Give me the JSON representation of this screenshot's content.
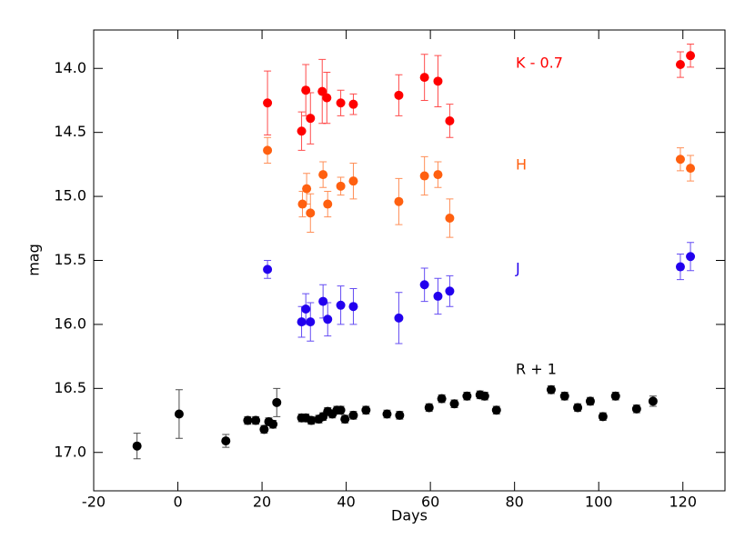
{
  "chart_data": {
    "type": "scatter",
    "xlabel": "Days",
    "ylabel": "mag",
    "xlim": [
      -20,
      130
    ],
    "ylim": [
      13.7,
      17.3
    ],
    "y_inverted": true,
    "xticks": [
      -20,
      0,
      20,
      40,
      60,
      80,
      100,
      120
    ],
    "yticks": [
      {
        "value": 14,
        "label": "14.0"
      },
      {
        "value": 14.5,
        "label": "14.5"
      },
      {
        "value": 15,
        "label": "15.0"
      },
      {
        "value": 15.5,
        "label": "15.5"
      },
      {
        "value": 16,
        "label": "16.0"
      },
      {
        "value": 16.5,
        "label": "16.5"
      },
      {
        "value": 17,
        "label": "17.0"
      }
    ],
    "series": [
      {
        "name": "K - 0.7",
        "color": "#ff0000",
        "x": [
          21.3,
          29.4,
          30.4,
          31.5,
          34.3,
          35.4,
          38.7,
          41.7,
          52.5,
          58.6,
          61.8,
          64.6,
          119.4,
          121.8
        ],
        "values": [
          14.27,
          14.49,
          14.17,
          14.39,
          14.18,
          14.23,
          14.27,
          14.28,
          14.21,
          14.07,
          14.1,
          14.41,
          13.97,
          13.9
        ],
        "errors": [
          0.25,
          0.15,
          0.2,
          0.2,
          0.25,
          0.2,
          0.1,
          0.08,
          0.16,
          0.18,
          0.2,
          0.13,
          0.1,
          0.09
        ]
      },
      {
        "name": "H",
        "color": "#ff6010",
        "x": [
          21.3,
          29.6,
          30.6,
          31.5,
          34.5,
          35.6,
          38.7,
          41.7,
          52.5,
          58.6,
          61.8,
          64.6,
          119.4,
          121.8
        ],
        "values": [
          14.64,
          15.06,
          14.94,
          15.13,
          14.83,
          15.06,
          14.92,
          14.88,
          15.04,
          14.84,
          14.83,
          15.17,
          14.71,
          14.78
        ],
        "errors": [
          0.1,
          0.1,
          0.12,
          0.15,
          0.1,
          0.1,
          0.07,
          0.14,
          0.18,
          0.15,
          0.1,
          0.15,
          0.09,
          0.1
        ]
      },
      {
        "name": "J",
        "color": "#2200ee",
        "x": [
          21.3,
          29.4,
          30.4,
          31.5,
          34.5,
          35.6,
          38.7,
          41.7,
          52.5,
          58.6,
          61.8,
          64.6,
          119.4,
          121.8
        ],
        "values": [
          15.57,
          15.98,
          15.88,
          15.98,
          15.82,
          15.96,
          15.85,
          15.86,
          15.95,
          15.69,
          15.78,
          15.74,
          15.55,
          15.47
        ],
        "errors": [
          0.07,
          0.12,
          0.12,
          0.15,
          0.13,
          0.13,
          0.15,
          0.14,
          0.2,
          0.13,
          0.14,
          0.12,
          0.1,
          0.11
        ]
      },
      {
        "name": "R + 1",
        "color": "#000000",
        "x": [
          -9.7,
          0.3,
          11.4,
          16.6,
          18.5,
          20.5,
          21.6,
          22.6,
          23.5,
          29.4,
          30.4,
          31.7,
          33.5,
          34.5,
          35.6,
          36.7,
          37.8,
          38.7,
          39.7,
          41.7,
          44.7,
          49.7,
          52.7,
          59.7,
          62.7,
          65.7,
          68.7,
          71.8,
          72.9,
          75.7,
          88.7,
          91.9,
          95.0,
          98.0,
          101.0,
          104.0,
          109.0,
          112.9
        ],
        "values": [
          16.95,
          16.7,
          16.91,
          16.75,
          16.75,
          16.82,
          16.76,
          16.78,
          16.61,
          16.73,
          16.73,
          16.75,
          16.74,
          16.72,
          16.68,
          16.7,
          16.67,
          16.67,
          16.74,
          16.71,
          16.67,
          16.7,
          16.71,
          16.65,
          16.58,
          16.62,
          16.56,
          16.55,
          16.56,
          16.67,
          16.51,
          16.56,
          16.65,
          16.6,
          16.72,
          16.56,
          16.66,
          16.6
        ],
        "errors": [
          0.1,
          0.19,
          0.05,
          0.03,
          0.03,
          0.03,
          0.03,
          0.03,
          0.11,
          0.03,
          0.03,
          0.03,
          0.03,
          0.03,
          0.03,
          0.03,
          0.03,
          0.03,
          0.03,
          0.03,
          0.03,
          0.03,
          0.03,
          0.03,
          0.03,
          0.03,
          0.03,
          0.03,
          0.03,
          0.03,
          0.03,
          0.03,
          0.03,
          0.03,
          0.03,
          0.03,
          0.03,
          0.04
        ]
      }
    ]
  }
}
